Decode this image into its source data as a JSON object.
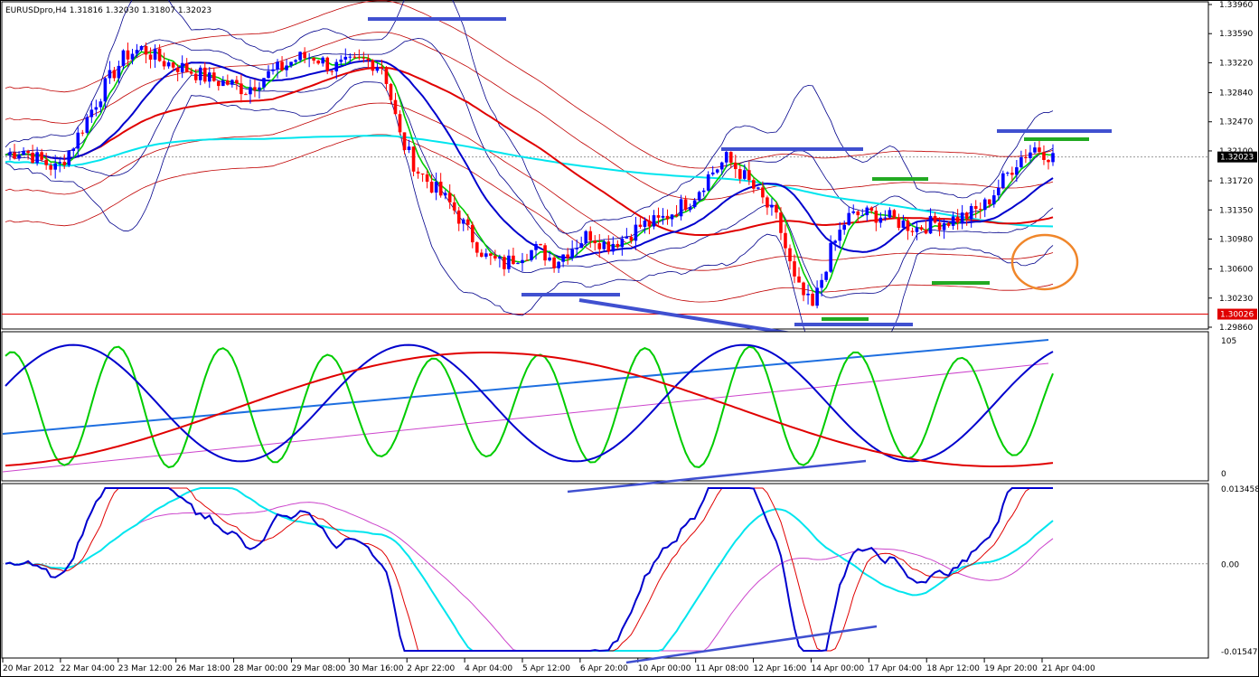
{
  "window": {
    "symbol_line": "EURUSDpro,H4  1.31816 1.32030 1.31807 1.32023"
  },
  "colors": {
    "bull": "#0000ff",
    "bear": "#ff0000",
    "bb_inner": "#00008b",
    "bb_outer": "#00008b",
    "env": "#c00000",
    "ema_fast": "#00cc00",
    "ma_mid": "#0000cd",
    "ma_slow": "#e00000",
    "ma_long": "#00e5ee",
    "stoch_green": "#00cc00",
    "stoch_blue": "#0000cd",
    "stoch_red": "#e00000",
    "trend_blue": "#1e6fe0",
    "trend_magenta": "#cc44cc",
    "macd_blue": "#0000cd",
    "macd_red": "#e00000",
    "macd_cyan": "#00e5ee",
    "macd_magenta": "#cc44cc",
    "annot_blue": "#4050d0",
    "annot_green": "#22aa22",
    "annot_orange": "#f0862a",
    "price_marker_red": "#e00000"
  },
  "chart_data": [
    {
      "type": "candlestick",
      "panel": "price",
      "ylim": [
        1.2986,
        1.3396
      ],
      "y_ticks": [
        "1.33960",
        "1.33590",
        "1.33220",
        "1.32840",
        "1.32470",
        "1.32100",
        "1.31720",
        "1.31350",
        "1.30980",
        "1.30600",
        "1.30230",
        "1.29860"
      ],
      "current_price_label": "1.32023",
      "marked_level_label": "1.30026",
      "x_tick_labels": [
        "20 Mar 2012",
        "22 Mar 04:00",
        "23 Mar 12:00",
        "26 Mar 18:00",
        "28 Mar 00:00",
        "29 Mar 08:00",
        "30 Mar 16:00",
        "2 Apr 22:00",
        "4 Apr 04:00",
        "5 Apr 12:00",
        "6 Apr 20:00",
        "10 Apr 00:00",
        "11 Apr 08:00",
        "12 Apr 16:00",
        "14 Apr 00:00",
        "17 Apr 04:00",
        "18 Apr 12:00",
        "19 Apr 20:00",
        "21 Apr 04:00"
      ],
      "close_path": [
        1.3205,
        1.3212,
        1.3198,
        1.3187,
        1.322,
        1.3262,
        1.33,
        1.3332,
        1.334,
        1.3325,
        1.3318,
        1.331,
        1.33,
        1.3296,
        1.3288,
        1.3304,
        1.3315,
        1.3328,
        1.333,
        1.3316,
        1.332,
        1.3325,
        1.3318,
        1.3226,
        1.3185,
        1.3162,
        1.314,
        1.3105,
        1.3075,
        1.3065,
        1.308,
        1.3085,
        1.307,
        1.3088,
        1.3105,
        1.309,
        1.31,
        1.3115,
        1.312,
        1.3135,
        1.315,
        1.318,
        1.32,
        1.3178,
        1.315,
        1.312,
        1.304,
        1.301,
        1.308,
        1.3125,
        1.313,
        1.3128,
        1.312,
        1.3112,
        1.3118,
        1.3122,
        1.3128,
        1.314,
        1.317,
        1.32,
        1.3215,
        1.3202
      ]
    },
    {
      "type": "line",
      "panel": "stochastic",
      "ylim": [
        0,
        105
      ],
      "y_ticks": [
        "105",
        "0"
      ]
    },
    {
      "type": "line",
      "panel": "macd",
      "ylim": [
        -0.01547,
        0.01345
      ],
      "y_ticks": [
        "0.013458",
        "0.00",
        "-0.01547"
      ]
    }
  ]
}
